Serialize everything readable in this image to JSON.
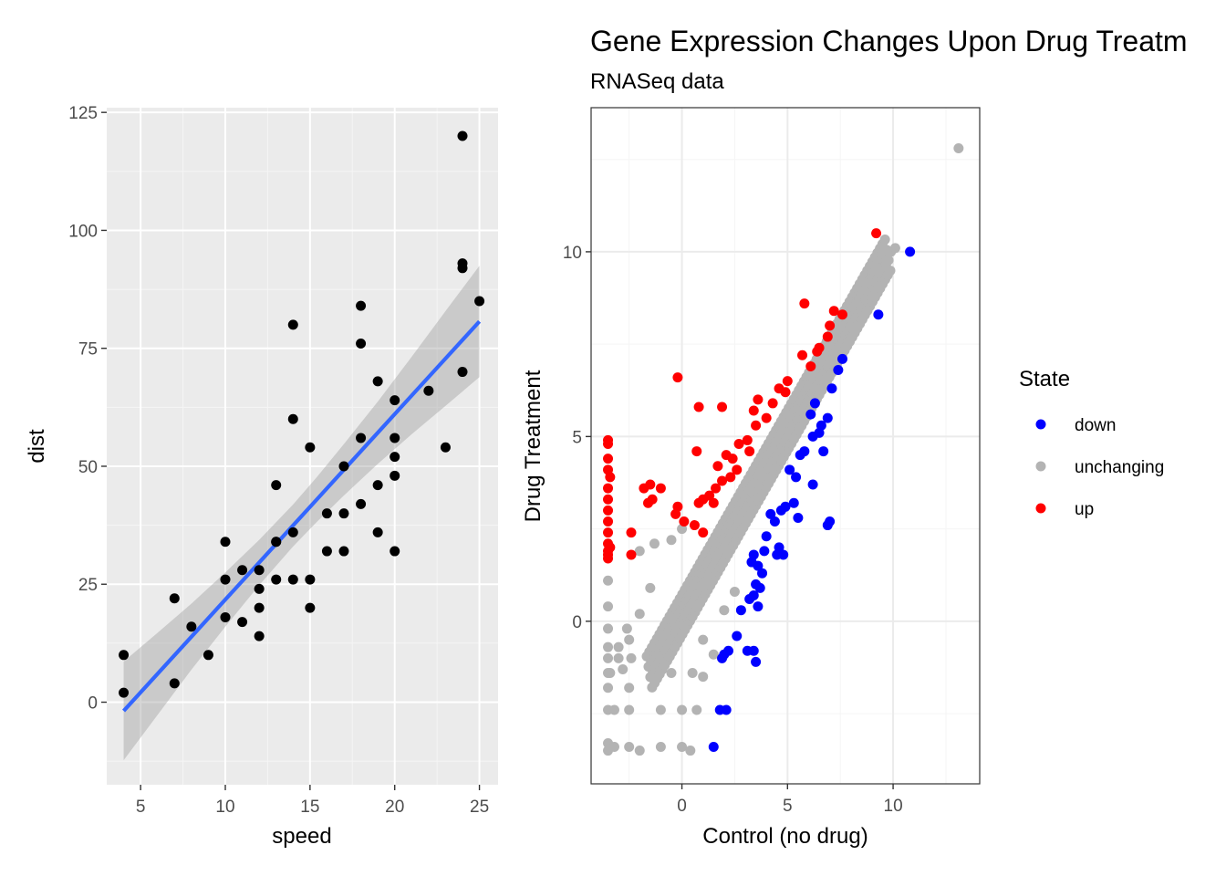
{
  "chart_data": [
    {
      "type": "scatter",
      "xlabel": "speed",
      "ylabel": "dist",
      "xlim": [
        3,
        26.1
      ],
      "ylim": [
        -17.5,
        126
      ],
      "x_ticks": [
        5,
        10,
        15,
        20,
        25
      ],
      "y_ticks": [
        0,
        25,
        50,
        75,
        100,
        125
      ],
      "x_tick_labels": [
        "5",
        "10",
        "15",
        "20",
        "25"
      ],
      "y_tick_labels": [
        "0",
        "25",
        "50",
        "75",
        "100",
        "125"
      ],
      "grid": true,
      "background": "gray",
      "colors": {
        "points": "#000000",
        "fit_line": "#3366ff",
        "ribbon": "#999999"
      },
      "points": [
        [
          4,
          2
        ],
        [
          4,
          10
        ],
        [
          7,
          4
        ],
        [
          7,
          22
        ],
        [
          8,
          16
        ],
        [
          9,
          10
        ],
        [
          10,
          18
        ],
        [
          10,
          26
        ],
        [
          10,
          34
        ],
        [
          11,
          17
        ],
        [
          11,
          28
        ],
        [
          12,
          14
        ],
        [
          12,
          20
        ],
        [
          12,
          24
        ],
        [
          12,
          28
        ],
        [
          13,
          26
        ],
        [
          13,
          34
        ],
        [
          13,
          34
        ],
        [
          13,
          46
        ],
        [
          14,
          26
        ],
        [
          14,
          36
        ],
        [
          14,
          60
        ],
        [
          14,
          80
        ],
        [
          15,
          20
        ],
        [
          15,
          26
        ],
        [
          15,
          54
        ],
        [
          16,
          32
        ],
        [
          16,
          40
        ],
        [
          17,
          32
        ],
        [
          17,
          40
        ],
        [
          17,
          50
        ],
        [
          18,
          42
        ],
        [
          18,
          56
        ],
        [
          18,
          76
        ],
        [
          18,
          84
        ],
        [
          19,
          36
        ],
        [
          19,
          46
        ],
        [
          19,
          68
        ],
        [
          20,
          32
        ],
        [
          20,
          48
        ],
        [
          20,
          52
        ],
        [
          20,
          56
        ],
        [
          20,
          64
        ],
        [
          22,
          66
        ],
        [
          23,
          54
        ],
        [
          24,
          70
        ],
        [
          24,
          92
        ],
        [
          24,
          93
        ],
        [
          24,
          120
        ],
        [
          25,
          85
        ]
      ],
      "fit": {
        "method": "lm",
        "x": [
          4,
          6,
          8,
          10,
          12,
          14,
          15.4,
          17,
          19,
          21,
          23,
          25
        ],
        "y": [
          -1.85,
          6.01,
          13.87,
          21.74,
          29.6,
          37.46,
          42.96,
          49.25,
          57.11,
          64.98,
          72.84,
          80.7
        ],
        "lower": [
          -12.3,
          -2.7,
          6.9,
          16.0,
          24.8,
          33.0,
          38.2,
          43.8,
          50.5,
          56.8,
          62.8,
          68.9
        ],
        "upper": [
          8.6,
          14.7,
          20.9,
          27.5,
          34.4,
          41.9,
          47.7,
          54.7,
          63.7,
          73.2,
          82.9,
          92.5
        ]
      }
    },
    {
      "type": "scatter",
      "title": "Gene Expression Changes Upon Drug Treatm",
      "subtitle": "RNASeq data",
      "xlabel": "Control (no drug)",
      "ylabel": "Drug Treatment",
      "xlim": [
        -4.3,
        14.1
      ],
      "ylim": [
        -4.4,
        13.9
      ],
      "x_ticks": [
        0,
        5,
        10
      ],
      "y_ticks": [
        0,
        5,
        10
      ],
      "x_tick_labels": [
        "0",
        "5",
        "10"
      ],
      "y_tick_labels": [
        "0",
        "5",
        "10"
      ],
      "grid": true,
      "background": "white",
      "legend": {
        "title": "State",
        "position": "right",
        "items": [
          {
            "label": "down",
            "color": "#0000ff"
          },
          {
            "label": "unchanging",
            "color": "#b3b3b3"
          },
          {
            "label": "up",
            "color": "#ff0000"
          }
        ]
      },
      "series": [
        {
          "name": "down",
          "color": "#0000ff",
          "points": [
            [
              10.8,
              10.0
            ],
            [
              9.3,
              8.3
            ],
            [
              7.6,
              7.1
            ],
            [
              7.4,
              6.8
            ],
            [
              7.1,
              6.3
            ],
            [
              6.9,
              5.5
            ],
            [
              6.6,
              5.3
            ],
            [
              6.3,
              5.9
            ],
            [
              6.1,
              5.6
            ],
            [
              6.5,
              5.1
            ],
            [
              6.2,
              5.0
            ],
            [
              5.8,
              4.6
            ],
            [
              5.6,
              4.5
            ],
            [
              6.7,
              4.6
            ],
            [
              5.1,
              4.1
            ],
            [
              5.4,
              3.9
            ],
            [
              6.2,
              3.7
            ],
            [
              4.9,
              3.1
            ],
            [
              5.3,
              3.2
            ],
            [
              4.7,
              3.0
            ],
            [
              4.2,
              2.9
            ],
            [
              4.4,
              2.7
            ],
            [
              5.5,
              2.8
            ],
            [
              4.0,
              2.3
            ],
            [
              7.0,
              2.7
            ],
            [
              6.9,
              2.6
            ],
            [
              4.6,
              2.0
            ],
            [
              3.9,
              1.9
            ],
            [
              4.5,
              1.8
            ],
            [
              4.8,
              1.8
            ],
            [
              3.4,
              1.8
            ],
            [
              3.3,
              1.6
            ],
            [
              3.6,
              1.5
            ],
            [
              3.8,
              1.3
            ],
            [
              3.5,
              1.0
            ],
            [
              3.7,
              0.9
            ],
            [
              3.4,
              0.7
            ],
            [
              3.2,
              0.6
            ],
            [
              3.6,
              0.4
            ],
            [
              2.8,
              0.3
            ],
            [
              2.6,
              -0.4
            ],
            [
              2.2,
              -0.8
            ],
            [
              2.0,
              -0.9
            ],
            [
              3.1,
              -0.8
            ],
            [
              3.4,
              -0.8
            ],
            [
              1.9,
              -1.0
            ],
            [
              3.5,
              -1.1
            ],
            [
              1.8,
              -2.4
            ],
            [
              2.1,
              -2.4
            ],
            [
              1.5,
              -3.4
            ]
          ]
        },
        {
          "name": "up",
          "color": "#ff0000",
          "points": [
            [
              9.2,
              10.5
            ],
            [
              5.8,
              8.6
            ],
            [
              7.2,
              8.4
            ],
            [
              7.6,
              8.3
            ],
            [
              7.0,
              8.0
            ],
            [
              6.9,
              7.7
            ],
            [
              6.5,
              7.4
            ],
            [
              6.4,
              7.3
            ],
            [
              5.7,
              7.2
            ],
            [
              6.1,
              6.9
            ],
            [
              5.0,
              6.5
            ],
            [
              4.6,
              6.3
            ],
            [
              4.9,
              6.2
            ],
            [
              3.6,
              6.0
            ],
            [
              4.3,
              5.9
            ],
            [
              -0.2,
              6.6
            ],
            [
              0.8,
              5.8
            ],
            [
              1.9,
              5.8
            ],
            [
              3.4,
              5.7
            ],
            [
              4.0,
              5.5
            ],
            [
              3.5,
              5.3
            ],
            [
              3.1,
              4.9
            ],
            [
              2.7,
              4.8
            ],
            [
              3.2,
              4.6
            ],
            [
              2.4,
              4.4
            ],
            [
              2.1,
              4.5
            ],
            [
              0.7,
              4.6
            ],
            [
              1.7,
              4.2
            ],
            [
              2.6,
              4.1
            ],
            [
              2.3,
              3.9
            ],
            [
              1.9,
              3.8
            ],
            [
              1.6,
              3.6
            ],
            [
              1.3,
              3.4
            ],
            [
              1.5,
              3.2
            ],
            [
              1.0,
              3.3
            ],
            [
              0.8,
              3.2
            ],
            [
              -0.2,
              3.1
            ],
            [
              -1.0,
              3.6
            ],
            [
              -1.8,
              3.6
            ],
            [
              -1.5,
              3.7
            ],
            [
              -1.4,
              3.3
            ],
            [
              -1.6,
              3.2
            ],
            [
              -0.3,
              2.9
            ],
            [
              -3.5,
              4.9
            ],
            [
              -3.5,
              4.8
            ],
            [
              -3.5,
              4.4
            ],
            [
              -3.5,
              4.1
            ],
            [
              -3.4,
              3.9
            ],
            [
              -3.5,
              3.6
            ],
            [
              -3.5,
              3.3
            ],
            [
              -3.5,
              3.0
            ],
            [
              -3.5,
              2.7
            ],
            [
              -3.5,
              2.4
            ],
            [
              -3.5,
              2.1
            ],
            [
              -3.5,
              1.9
            ],
            [
              -3.5,
              1.8
            ],
            [
              -3.5,
              1.7
            ],
            [
              -3.4,
              2.0
            ],
            [
              -2.4,
              2.4
            ],
            [
              -2.4,
              1.8
            ],
            [
              0.1,
              2.7
            ],
            [
              0.6,
              2.6
            ],
            [
              1.0,
              2.4
            ]
          ]
        }
      ],
      "unchanging": {
        "name": "unchanging",
        "color": "#b3b3b3",
        "description_of_bulk": "dense diagonal band near y = x from about (-1.5,-1.5) to (10.1,10.1), plus discrete low-expression columns at the left edge",
        "points": [
          [
            13.1,
            12.8
          ],
          [
            10.1,
            10.1
          ],
          [
            9.9,
            10.0
          ],
          [
            9.6,
            9.8
          ],
          [
            9.4,
            9.6
          ],
          [
            9.0,
            9.3
          ],
          [
            8.7,
            8.8
          ],
          [
            8.4,
            8.6
          ],
          [
            8.2,
            8.3
          ],
          [
            7.9,
            8.0
          ],
          [
            7.6,
            7.6
          ],
          [
            7.2,
            7.3
          ],
          [
            6.9,
            7.0
          ],
          [
            6.6,
            6.7
          ],
          [
            6.2,
            6.4
          ],
          [
            5.9,
            6.0
          ],
          [
            5.6,
            5.7
          ],
          [
            5.2,
            5.3
          ],
          [
            4.9,
            5.0
          ],
          [
            4.6,
            4.7
          ],
          [
            4.2,
            4.3
          ],
          [
            3.9,
            4.0
          ],
          [
            3.6,
            3.6
          ],
          [
            3.2,
            3.3
          ],
          [
            2.9,
            3.0
          ],
          [
            2.6,
            2.6
          ],
          [
            2.2,
            2.3
          ],
          [
            1.9,
            2.0
          ],
          [
            1.6,
            1.6
          ],
          [
            1.2,
            1.3
          ],
          [
            0.9,
            1.0
          ],
          [
            0.6,
            0.6
          ],
          [
            0.3,
            0.3
          ],
          [
            0.0,
            0.0
          ],
          [
            -0.3,
            -0.3
          ],
          [
            -0.6,
            -0.6
          ],
          [
            -1.0,
            -1.0
          ],
          [
            -1.3,
            -1.3
          ],
          [
            0.0,
            2.5
          ],
          [
            -0.5,
            2.2
          ],
          [
            -1.3,
            2.1
          ],
          [
            -2.0,
            1.9
          ],
          [
            -1.5,
            0.9
          ],
          [
            -2.0,
            0.2
          ],
          [
            -2.5,
            -0.5
          ],
          [
            -3.0,
            -1.0
          ],
          [
            -3.4,
            -1.4
          ],
          [
            1.0,
            -0.5
          ],
          [
            2.0,
            0.3
          ],
          [
            1.5,
            -0.9
          ],
          [
            2.5,
            0.8
          ],
          [
            -3.5,
            1.1
          ],
          [
            -3.5,
            0.4
          ],
          [
            -3.5,
            -0.2
          ],
          [
            -3.5,
            -0.7
          ],
          [
            -3.5,
            -1.0
          ],
          [
            -3.5,
            -1.4
          ],
          [
            -3.5,
            -1.8
          ],
          [
            -3.5,
            -2.4
          ],
          [
            -3.5,
            -3.3
          ],
          [
            -3.5,
            -3.5
          ],
          [
            -3.2,
            -3.4
          ],
          [
            -2.5,
            -3.4
          ],
          [
            -1.0,
            -3.4
          ],
          [
            0.0,
            -3.4
          ],
          [
            -2.5,
            -2.4
          ],
          [
            -1.0,
            -2.4
          ],
          [
            0.0,
            -2.4
          ],
          [
            0.7,
            -2.4
          ],
          [
            -2.5,
            -1.8
          ],
          [
            -0.5,
            -1.4
          ],
          [
            0.5,
            -1.4
          ],
          [
            1.0,
            -1.5
          ],
          [
            -2.4,
            -1.0
          ],
          [
            -0.5,
            -0.6
          ],
          [
            0.4,
            -3.5
          ],
          [
            -2.0,
            -3.5
          ],
          [
            -3.2,
            -2.4
          ],
          [
            -2.8,
            -1.3
          ],
          [
            -3.0,
            -0.7
          ],
          [
            -2.6,
            -0.2
          ]
        ]
      }
    }
  ]
}
